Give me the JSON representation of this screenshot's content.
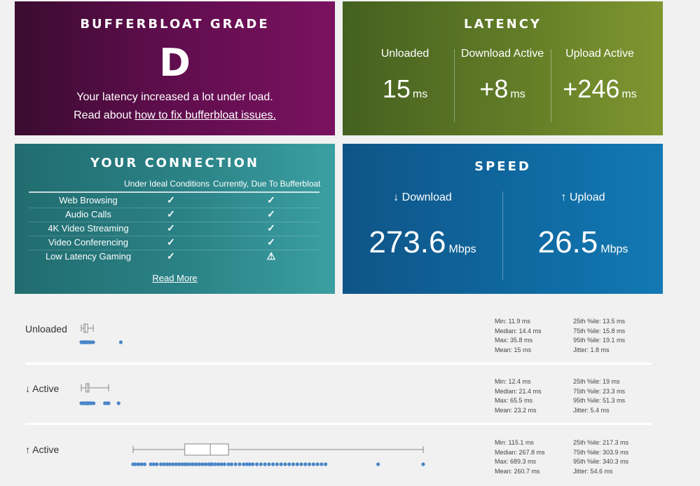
{
  "grade_card": {
    "title": "BUFFERBLOAT GRADE",
    "grade": "D",
    "message": "Your latency increased a lot under load.",
    "read_prefix": "Read about",
    "fix_link": "how to fix bufferbloat issues."
  },
  "latency_card": {
    "title": "LATENCY",
    "columns": [
      {
        "label": "Unloaded",
        "value": "15",
        "unit": "ms"
      },
      {
        "label": "Download Active",
        "value": "+8",
        "unit": "ms"
      },
      {
        "label": "Upload Active",
        "value": "+246",
        "unit": "ms"
      }
    ]
  },
  "connection_card": {
    "title": "YOUR CONNECTION",
    "col_ideal": "Under Ideal Conditions",
    "col_current": "Currently, Due To Bufferbloat",
    "rows": [
      {
        "name": "Web Browsing",
        "ideal": "✓",
        "current": "✓"
      },
      {
        "name": "Audio Calls",
        "ideal": "✓",
        "current": "✓"
      },
      {
        "name": "4K Video Streaming",
        "ideal": "✓",
        "current": "✓"
      },
      {
        "name": "Video Conferencing",
        "ideal": "✓",
        "current": "✓"
      },
      {
        "name": "Low Latency Gaming",
        "ideal": "✓",
        "current": "⚠"
      }
    ],
    "read_more": "Read More"
  },
  "speed_card": {
    "title": "SPEED",
    "download_label": "↓ Download",
    "download_value": "273.6",
    "upload_label": "↑ Upload",
    "upload_value": "26.5",
    "unit": "Mbps"
  },
  "latency_details": [
    {
      "label": "Unloaded",
      "box": {
        "min": 11.9,
        "q1": 13.5,
        "median": 14.4,
        "q3": 15.8,
        "max": 19.1
      },
      "points": [
        11.9,
        12.2,
        12.5,
        12.8,
        13.0,
        13.2,
        13.5,
        13.7,
        14.0,
        14.2,
        14.4,
        14.6,
        14.8,
        15.0,
        15.3,
        15.6,
        15.8,
        16.3,
        17.0,
        18.0,
        19.1,
        35.8
      ],
      "stats_left": [
        "Min: 11.9 ms",
        "Median: 14.4 ms",
        "Max: 35.8 ms",
        "Mean: 15 ms"
      ],
      "stats_right": [
        "25th %ile: 13.5 ms",
        "75th %ile: 15.8 ms",
        "95th %ile: 19.1 ms",
        "Jitter: 1.8 ms"
      ]
    },
    {
      "label": "↓ Active",
      "box": {
        "min": 12.4,
        "q1": 19,
        "median": 21.4,
        "q3": 23.3,
        "max": 51.3
      },
      "points": [
        12.4,
        13.0,
        14.0,
        15.0,
        16.0,
        17.0,
        18.0,
        19.0,
        19.5,
        20.0,
        20.5,
        21.0,
        21.4,
        21.8,
        22.2,
        22.6,
        23.0,
        23.3,
        24.0,
        25.0,
        27.0,
        30.0,
        46.0,
        49.0,
        51.3,
        65.5
      ],
      "stats_left": [
        "Min: 12.4 ms",
        "Median: 21.4 ms",
        "Max: 65.5 ms",
        "Mean: 23.2 ms"
      ],
      "stats_right": [
        "25th %ile: 19 ms",
        "75th %ile: 23.3 ms",
        "95th %ile: 51.3 ms",
        "Jitter: 5.4 ms"
      ]
    },
    {
      "label": "↑ Active",
      "box": {
        "min": 115.1,
        "q1": 217.3,
        "median": 267.8,
        "q3": 303.9,
        "max": 689.3
      },
      "points": [
        115.1,
        120,
        126,
        132,
        138,
        150,
        156,
        162,
        170,
        176,
        182,
        188,
        194,
        200,
        206,
        212,
        217.3,
        222,
        228,
        234,
        240,
        246,
        252,
        258,
        264,
        267.8,
        272,
        278,
        284,
        290,
        296,
        303.9,
        310,
        318,
        326,
        334,
        340.3,
        346,
        352,
        360,
        368,
        376,
        384,
        392,
        400,
        408,
        416,
        424,
        432,
        440,
        448,
        456,
        464,
        472,
        480,
        488,
        496,
        600,
        689.3
      ],
      "stats_left": [
        "Min: 115.1 ms",
        "Median: 267.8 ms",
        "Max: 689.3 ms",
        "Mean: 260.7 ms"
      ],
      "stats_right": [
        "25th %ile: 217.3 ms",
        "75th %ile: 303.9 ms",
        "95th %ile: 340.3 ms",
        "Jitter: 54.6 ms"
      ]
    }
  ],
  "colors": {
    "plot_point": "#4a86c8",
    "whisker": "#888888"
  }
}
